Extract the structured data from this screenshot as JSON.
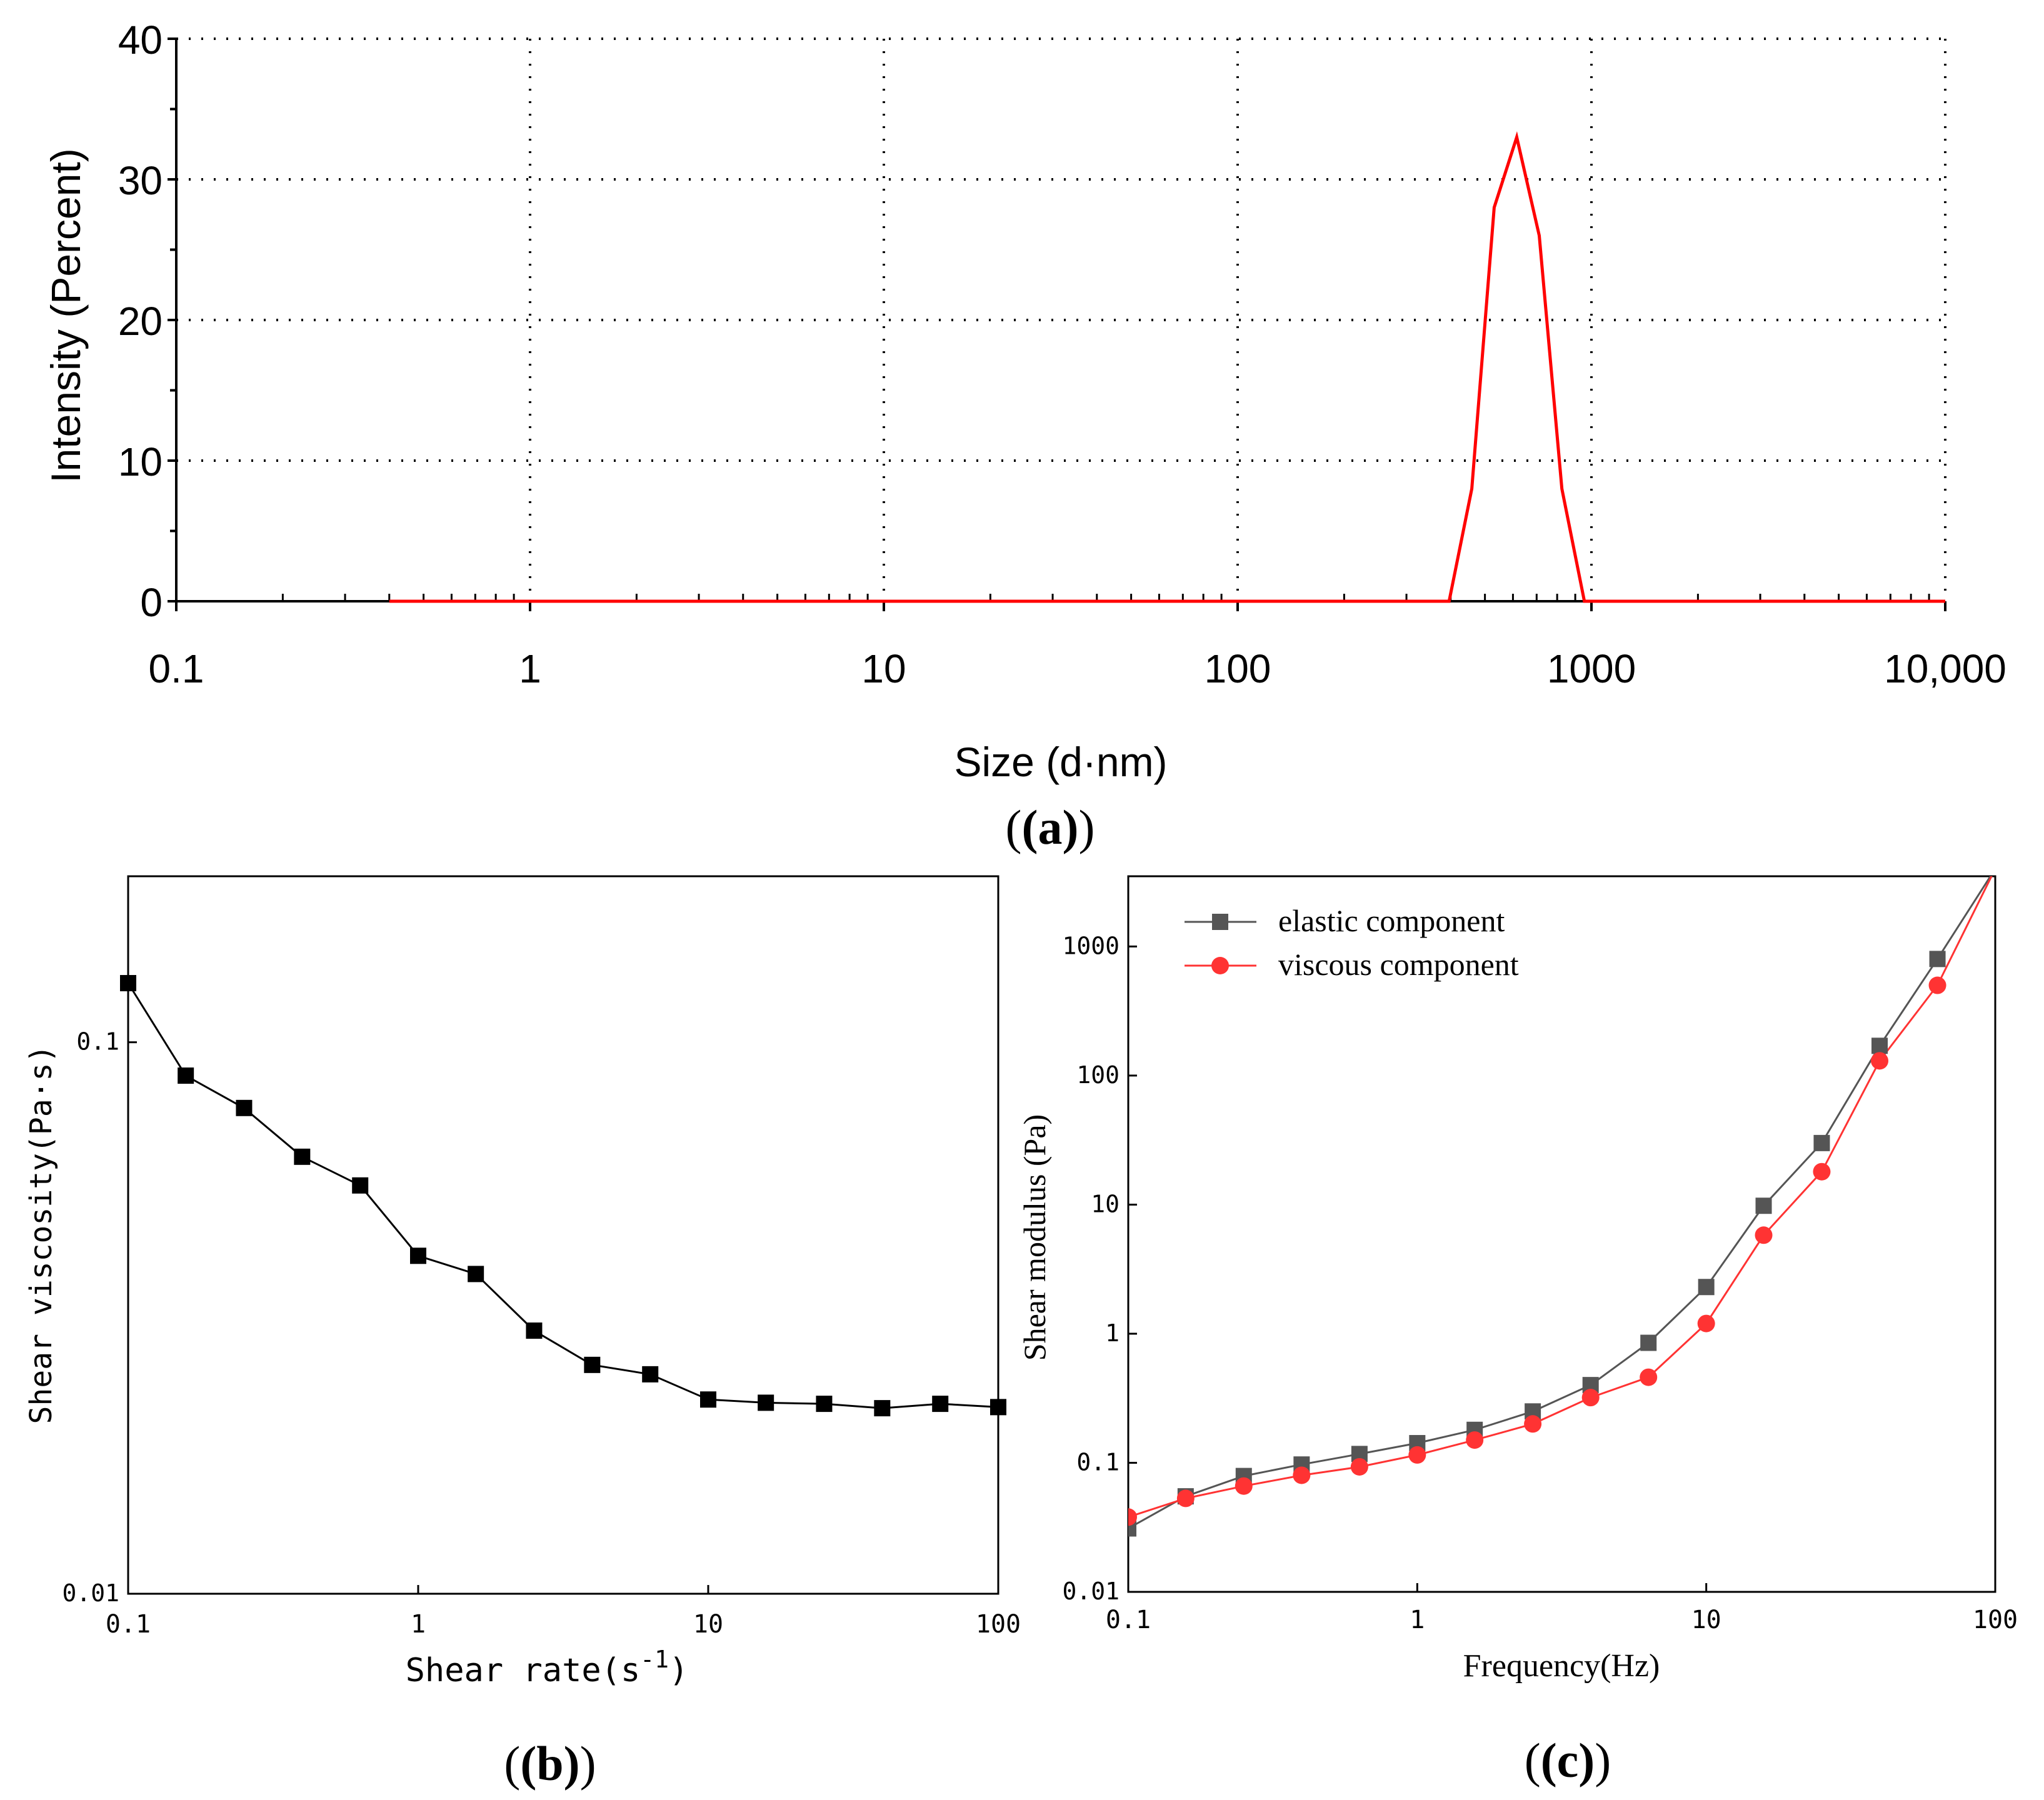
{
  "panels": {
    "a": "(a)",
    "b": "(b)",
    "c": "(c)"
  },
  "colors": {
    "red": "#ff0000",
    "black": "#000000",
    "elastic": "#555555",
    "viscous": "#ff3333",
    "grid": "#000000"
  },
  "chart_data": [
    {
      "id": "a",
      "type": "line",
      "title": "",
      "xlabel": "Size (d·nm)",
      "ylabel": "Intensity (Percent)",
      "xscale": "log",
      "xlim": [
        0.1,
        10000
      ],
      "ylim": [
        0,
        40
      ],
      "xticks": [
        0.1,
        1,
        10,
        100,
        1000,
        10000
      ],
      "xtick_labels": [
        "0.1",
        "1",
        "10",
        "100",
        "1000",
        "10,000"
      ],
      "yticks": [
        0,
        10,
        20,
        30,
        40
      ],
      "ytick_labels": [
        "0",
        "10",
        "20",
        "30",
        "40"
      ],
      "grid": true,
      "series": [
        {
          "name": "Intensity",
          "color": "#ff0000",
          "x": [
            0.4,
            1,
            10,
            100,
            396,
            459,
            531,
            615,
            712,
            825,
            955,
            1100,
            10000
          ],
          "y": [
            0,
            0,
            0,
            0,
            0,
            8,
            28,
            33,
            26,
            8,
            0,
            0,
            0
          ]
        }
      ]
    },
    {
      "id": "b",
      "type": "line",
      "title": "",
      "xlabel": "Shear rate(s",
      "xlabel_sup": "-1",
      "xlabel_end": ")",
      "ylabel": "Shear viscosity(Pa·s)",
      "xscale": "log",
      "yscale": "log",
      "xlim": [
        0.1,
        100
      ],
      "ylim": [
        0.01,
        0.2
      ],
      "xticks": [
        0.1,
        1,
        10,
        100
      ],
      "xtick_labels": [
        "0.1",
        "1",
        "10",
        "100"
      ],
      "yticks": [
        0.01,
        0.1
      ],
      "ytick_labels": [
        "0.01",
        "0.1"
      ],
      "grid": false,
      "series": [
        {
          "name": "Shear viscosity",
          "color": "#000000",
          "marker": "square",
          "x": [
            0.1,
            0.158,
            0.251,
            0.398,
            0.631,
            1,
            1.58,
            2.51,
            3.98,
            6.31,
            10,
            15.8,
            25.1,
            39.8,
            63.1,
            100
          ],
          "y": [
            0.128,
            0.087,
            0.076,
            0.062,
            0.055,
            0.041,
            0.038,
            0.03,
            0.026,
            0.025,
            0.0225,
            0.0222,
            0.0221,
            0.0217,
            0.0221,
            0.0218
          ]
        }
      ]
    },
    {
      "id": "c",
      "type": "line",
      "title": "",
      "xlabel": "Frequency(Hz)",
      "ylabel": "Shear modulus (Pa)",
      "xscale": "log",
      "yscale": "log",
      "xlim": [
        0.1,
        100
      ],
      "ylim": [
        0.01,
        3500
      ],
      "xticks": [
        0.1,
        1,
        10,
        100
      ],
      "xtick_labels": [
        "0.1",
        "1",
        "10",
        "100"
      ],
      "yticks": [
        0.01,
        0.1,
        1,
        10,
        100,
        1000
      ],
      "ytick_labels": [
        "0.01",
        "0.1",
        "1",
        "10",
        "100",
        "1000"
      ],
      "grid": false,
      "legend": "top-left",
      "series": [
        {
          "name": "elastic component",
          "color": "#555555",
          "marker": "square",
          "x": [
            0.1,
            0.158,
            0.251,
            0.398,
            0.631,
            1,
            1.58,
            2.51,
            3.98,
            6.31,
            10,
            15.8,
            25.1,
            39.8,
            63.1,
            100
          ],
          "y": [
            0.031,
            0.055,
            0.079,
            0.097,
            0.117,
            0.142,
            0.18,
            0.25,
            0.4,
            0.85,
            2.3,
            9.8,
            30,
            170,
            800,
            4000
          ]
        },
        {
          "name": "viscous component",
          "color": "#ff3333",
          "marker": "circle",
          "x": [
            0.1,
            0.158,
            0.251,
            0.398,
            0.631,
            1,
            1.58,
            2.51,
            3.98,
            6.31,
            10,
            15.8,
            25.1,
            39.8,
            63.1,
            100
          ],
          "y": [
            0.038,
            0.053,
            0.066,
            0.08,
            0.093,
            0.115,
            0.15,
            0.2,
            0.32,
            0.46,
            1.2,
            5.8,
            18,
            130,
            500,
            4000
          ]
        }
      ]
    }
  ]
}
